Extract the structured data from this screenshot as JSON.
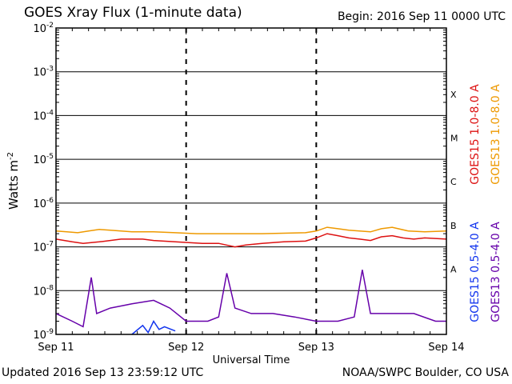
{
  "header": {
    "title": "GOES Xray Flux (1-minute data)",
    "begin": "Begin:  2016 Sep 11 0000 UTC"
  },
  "footer": {
    "updated": "Updated 2016 Sep 13 23:59:12 UTC",
    "credit": "NOAA/SWPC Boulder, CO USA"
  },
  "chart_data": {
    "type": "line",
    "ylabel": "Watts m",
    "ylabel_exponent": "-2",
    "xlabel": "Universal Time",
    "yscale": "log",
    "ylim": [
      1e-09,
      0.01
    ],
    "xlim": [
      "2016-09-11 00:00",
      "2016-09-14 00:00"
    ],
    "x_ticks": [
      "Sep 11",
      "Sep 12",
      "Sep 13",
      "Sep 14"
    ],
    "y_ticks": [
      {
        "base": "10",
        "exp": "-9"
      },
      {
        "base": "10",
        "exp": "-8"
      },
      {
        "base": "10",
        "exp": "-7"
      },
      {
        "base": "10",
        "exp": "-6"
      },
      {
        "base": "10",
        "exp": "-5"
      },
      {
        "base": "10",
        "exp": "-4"
      },
      {
        "base": "10",
        "exp": "-3"
      },
      {
        "base": "10",
        "exp": "-2"
      }
    ],
    "flare_classes": [
      "A",
      "B",
      "C",
      "M",
      "X"
    ],
    "grid": true,
    "series": [
      {
        "name": "GOES15 1.0-8.0 A",
        "color": "#dd1111",
        "points": [
          [
            "2016-09-11 00:00",
            1.5e-07
          ],
          [
            "2016-09-11 03:00",
            1.3e-07
          ],
          [
            "2016-09-11 05:00",
            1.2e-07
          ],
          [
            "2016-09-11 08:00",
            1.3e-07
          ],
          [
            "2016-09-11 10:00",
            1.4e-07
          ],
          [
            "2016-09-11 12:00",
            1.5e-07
          ],
          [
            "2016-09-11 16:00",
            1.5e-07
          ],
          [
            "2016-09-11 18:00",
            1.4e-07
          ],
          [
            "2016-09-11 22:00",
            1.3e-07
          ],
          [
            "2016-09-12 03:00",
            1.2e-07
          ],
          [
            "2016-09-12 06:00",
            1.2e-07
          ],
          [
            "2016-09-12 09:00",
            1e-07
          ],
          [
            "2016-09-12 11:00",
            1.1e-07
          ],
          [
            "2016-09-12 14:00",
            1.2e-07
          ],
          [
            "2016-09-12 18:00",
            1.3e-07
          ],
          [
            "2016-09-12 22:00",
            1.35e-07
          ],
          [
            "2016-09-13 00:00",
            1.6e-07
          ],
          [
            "2016-09-13 02:00",
            2e-07
          ],
          [
            "2016-09-13 04:00",
            1.8e-07
          ],
          [
            "2016-09-13 06:00",
            1.6e-07
          ],
          [
            "2016-09-13 08:00",
            1.5e-07
          ],
          [
            "2016-09-13 10:00",
            1.4e-07
          ],
          [
            "2016-09-13 12:00",
            1.7e-07
          ],
          [
            "2016-09-13 14:00",
            1.8e-07
          ],
          [
            "2016-09-13 16:00",
            1.6e-07
          ],
          [
            "2016-09-13 18:00",
            1.5e-07
          ],
          [
            "2016-09-13 20:00",
            1.6e-07
          ],
          [
            "2016-09-13 24:00",
            1.5e-07
          ]
        ]
      },
      {
        "name": "GOES13 1.0-8.0 A",
        "color": "#ee9900",
        "points": [
          [
            "2016-09-11 00:00",
            2.3e-07
          ],
          [
            "2016-09-11 02:00",
            2.2e-07
          ],
          [
            "2016-09-11 04:00",
            2.1e-07
          ],
          [
            "2016-09-11 06:00",
            2.3e-07
          ],
          [
            "2016-09-11 08:00",
            2.5e-07
          ],
          [
            "2016-09-11 10:00",
            2.4e-07
          ],
          [
            "2016-09-11 14:00",
            2.2e-07
          ],
          [
            "2016-09-11 18:00",
            2.2e-07
          ],
          [
            "2016-09-11 22:00",
            2.1e-07
          ],
          [
            "2016-09-12 02:00",
            2e-07
          ],
          [
            "2016-09-12 06:00",
            2e-07
          ],
          [
            "2016-09-12 10:00",
            2e-07
          ],
          [
            "2016-09-12 14:00",
            2e-07
          ],
          [
            "2016-09-12 18:00",
            2.05e-07
          ],
          [
            "2016-09-12 22:00",
            2.1e-07
          ],
          [
            "2016-09-13 00:00",
            2.3e-07
          ],
          [
            "2016-09-13 02:00",
            2.8e-07
          ],
          [
            "2016-09-13 04:00",
            2.6e-07
          ],
          [
            "2016-09-13 06:00",
            2.4e-07
          ],
          [
            "2016-09-13 10:00",
            2.2e-07
          ],
          [
            "2016-09-13 12:00",
            2.6e-07
          ],
          [
            "2016-09-13 14:00",
            2.8e-07
          ],
          [
            "2016-09-13 17:00",
            2.3e-07
          ],
          [
            "2016-09-13 20:00",
            2.2e-07
          ],
          [
            "2016-09-13 24:00",
            2.3e-07
          ]
        ]
      },
      {
        "name": "GOES15 0.5-4.0 A",
        "color": "#1133ee",
        "points": [
          [
            "2016-09-11 14:00",
            1e-09
          ],
          [
            "2016-09-11 16:00",
            1.6e-09
          ],
          [
            "2016-09-11 17:00",
            1.1e-09
          ],
          [
            "2016-09-11 18:00",
            2e-09
          ],
          [
            "2016-09-11 19:00",
            1.3e-09
          ],
          [
            "2016-09-11 20:00",
            1.5e-09
          ],
          [
            "2016-09-11 22:00",
            1.2e-09
          ]
        ]
      },
      {
        "name": "GOES13 0.5-4.0 A",
        "color": "#6600aa",
        "points": [
          [
            "2016-09-11 00:00",
            3e-09
          ],
          [
            "2016-09-11 03:00",
            2e-09
          ],
          [
            "2016-09-11 05:00",
            1.5e-09
          ],
          [
            "2016-09-11 06:30",
            2e-08
          ],
          [
            "2016-09-11 07:30",
            3e-09
          ],
          [
            "2016-09-11 10:00",
            4e-09
          ],
          [
            "2016-09-11 14:00",
            5e-09
          ],
          [
            "2016-09-11 18:00",
            6e-09
          ],
          [
            "2016-09-11 21:00",
            4e-09
          ],
          [
            "2016-09-12 00:00",
            2e-09
          ],
          [
            "2016-09-12 04:00",
            2e-09
          ],
          [
            "2016-09-12 06:00",
            2.5e-09
          ],
          [
            "2016-09-12 07:30",
            2.5e-08
          ],
          [
            "2016-09-12 09:00",
            4e-09
          ],
          [
            "2016-09-12 12:00",
            3e-09
          ],
          [
            "2016-09-12 16:00",
            3e-09
          ],
          [
            "2016-09-12 20:00",
            2.5e-09
          ],
          [
            "2016-09-13 00:00",
            2e-09
          ],
          [
            "2016-09-13 04:00",
            2e-09
          ],
          [
            "2016-09-13 07:00",
            2.5e-09
          ],
          [
            "2016-09-13 08:30",
            3e-08
          ],
          [
            "2016-09-13 10:00",
            3e-09
          ],
          [
            "2016-09-13 14:00",
            3e-09
          ],
          [
            "2016-09-13 18:00",
            3e-09
          ],
          [
            "2016-09-13 22:00",
            2e-09
          ],
          [
            "2016-09-13 24:00",
            2e-09
          ]
        ]
      }
    ]
  }
}
